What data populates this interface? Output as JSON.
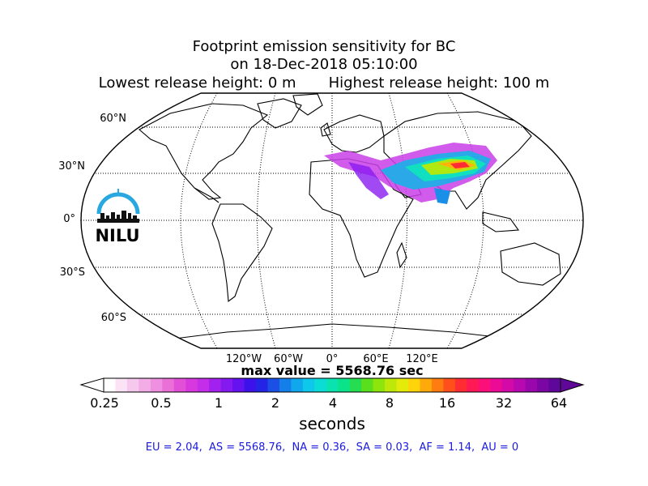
{
  "title": {
    "line1": "Footprint emission sensitivity for BC",
    "line2": "on 18-Dec-2018 05:10:00",
    "line3": "Lowest release height: 0 m       Highest release height: 100 m"
  },
  "map": {
    "projection": "robinson",
    "lat_labels": [
      "60°N",
      "30°N",
      "0°",
      "30°S",
      "60°S"
    ],
    "lon_labels": [
      "120°W",
      "60°W",
      "0°",
      "60°E",
      "120°E"
    ],
    "graticule": "dotted",
    "sensitivity_region": "South and East Asia / Middle East"
  },
  "logo": {
    "text": "NILU",
    "color": "#29a8e0"
  },
  "max_value_text": "max value = 5568.76 sec",
  "colorbar": {
    "ticks": [
      "0.25",
      "0.5",
      "1",
      "2",
      "4",
      "8",
      "16",
      "32",
      "64"
    ],
    "unit": "seconds",
    "colors": [
      "#ffffff",
      "#fbe3f5",
      "#f7c8ee",
      "#f2ade6",
      "#ee8fdf",
      "#ea70d8",
      "#e350d8",
      "#d839df",
      "#c52ee9",
      "#a321ee",
      "#8419f0",
      "#6412f0",
      "#3b12ea",
      "#2424e6",
      "#1b4fe6",
      "#157fe9",
      "#10a8ec",
      "#0dc8ea",
      "#0bdcd5",
      "#0ae3b0",
      "#0be38a",
      "#26dd52",
      "#59df1c",
      "#8ee50c",
      "#bde80a",
      "#e4ea0a",
      "#ffd40a",
      "#ffa90b",
      "#ff7d10",
      "#ff4f1a",
      "#ff2c34",
      "#ff1a56",
      "#fb107a",
      "#ec0b96",
      "#d309a8",
      "#b808b0",
      "#9a07ad",
      "#7c06a4",
      "#5e0798"
    ]
  },
  "summary": "EU = 2.04,  AS = 5568.76,  NA = 0.36,  SA = 0.03,  AF = 1.14,  AU = 0"
}
